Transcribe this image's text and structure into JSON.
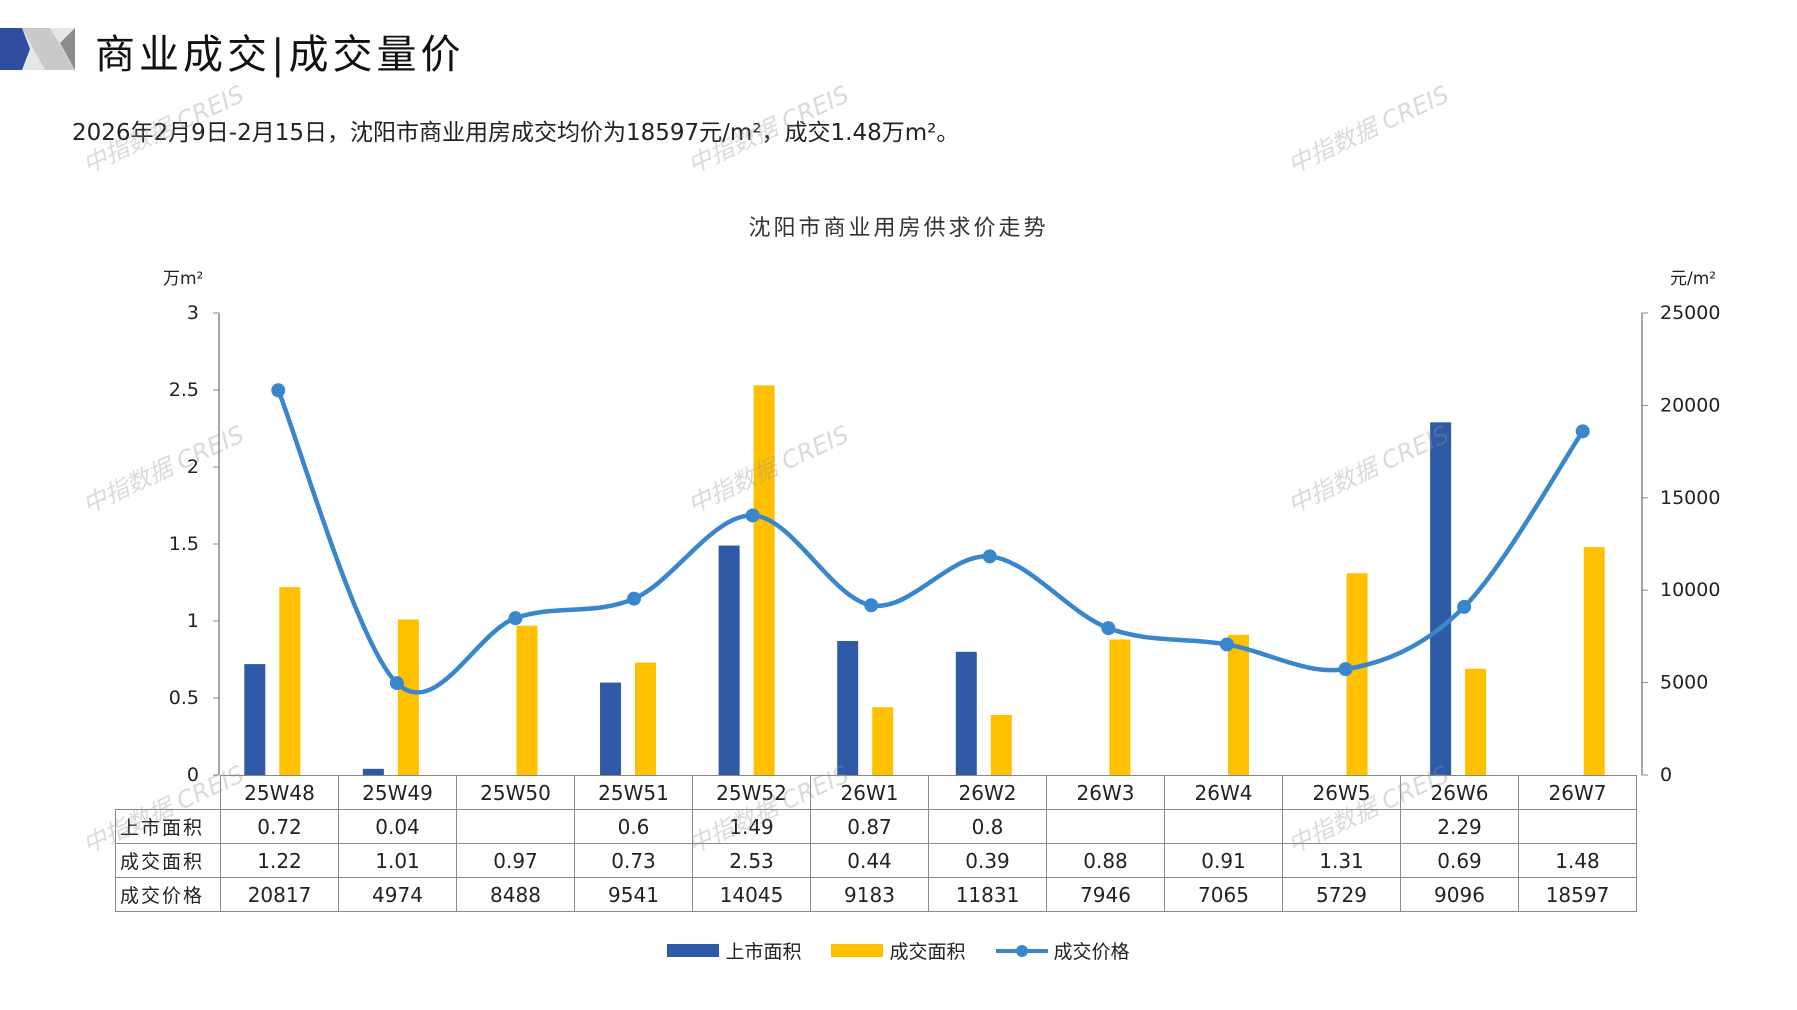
{
  "header": {
    "title": "商业成交|成交量价",
    "subtitle": "2026年2月9日-2月15日，沈阳市商业用房成交均价为18597元/m²，成交1.48万m²。"
  },
  "watermark": "中指数据 CREIS",
  "colors": {
    "supply": "#2E5AA8",
    "deal_area": "#FFC000",
    "price": "#3A86CC",
    "accent_dark": "#2F4D9E",
    "accent_grey": "#BFBFBF"
  },
  "chart_data": {
    "type": "bar+line",
    "title": "沈阳市商业用房供求价走势",
    "ylabel_left": "万m²",
    "ylabel_right": "元/m²",
    "ylim_left": [
      0,
      3
    ],
    "ylim_right": [
      0,
      25000
    ],
    "yticks_left": [
      "0",
      "0.5",
      "1",
      "1.5",
      "2",
      "2.5",
      "3"
    ],
    "yticks_right": [
      "0",
      "5000",
      "10000",
      "15000",
      "20000",
      "25000"
    ],
    "categories": [
      "25W48",
      "25W49",
      "25W50",
      "25W51",
      "25W52",
      "26W1",
      "26W2",
      "26W3",
      "26W4",
      "26W5",
      "26W6",
      "26W7"
    ],
    "series": [
      {
        "name": "上市面积",
        "type": "bar",
        "axis": "left",
        "values": [
          0.72,
          0.04,
          null,
          0.6,
          1.49,
          0.87,
          0.8,
          null,
          null,
          null,
          2.29,
          null
        ],
        "labels": [
          "0.72",
          "0.04",
          "",
          "0.6",
          "1.49",
          "0.87",
          "0.8",
          "",
          "",
          "",
          "2.29",
          ""
        ]
      },
      {
        "name": "成交面积",
        "type": "bar",
        "axis": "left",
        "values": [
          1.22,
          1.01,
          0.97,
          0.73,
          2.53,
          0.44,
          0.39,
          0.88,
          0.91,
          1.31,
          0.69,
          1.48
        ],
        "labels": [
          "1.22",
          "1.01",
          "0.97",
          "0.73",
          "2.53",
          "0.44",
          "0.39",
          "0.88",
          "0.91",
          "1.31",
          "0.69",
          "1.48"
        ]
      },
      {
        "name": "成交价格",
        "type": "line",
        "axis": "right",
        "values": [
          20817,
          4974,
          8488,
          9541,
          14045,
          9183,
          11831,
          7946,
          7065,
          5729,
          9096,
          18597
        ],
        "labels": [
          "20817",
          "4974",
          "8488",
          "9541",
          "14045",
          "9183",
          "11831",
          "7946",
          "7065",
          "5729",
          "9096",
          "18597"
        ]
      }
    ],
    "legend": "bottom",
    "grid": false
  }
}
